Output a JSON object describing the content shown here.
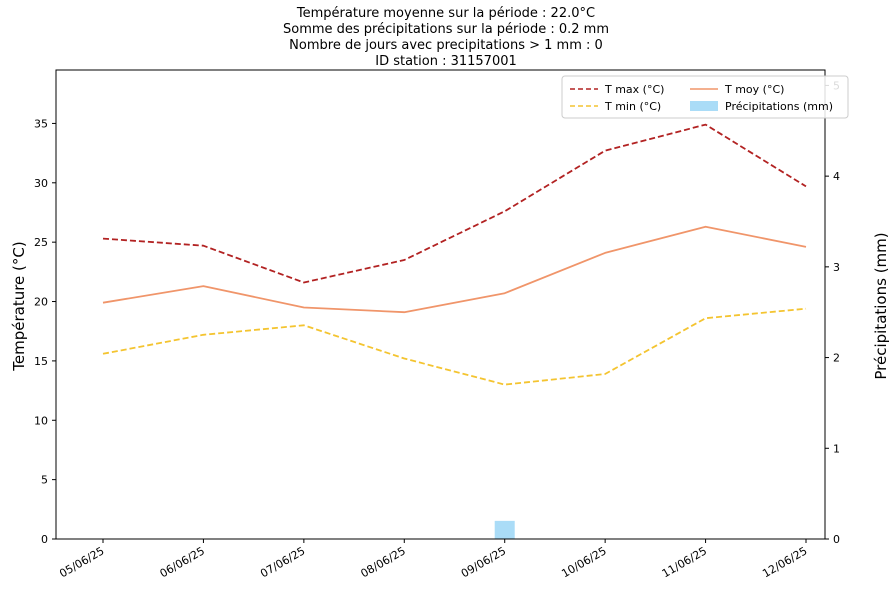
{
  "chart_data": {
    "type": "line",
    "title_lines": [
      "Température moyenne sur la période : 22.0°C",
      "Somme des précipitations sur la période : 0.2 mm",
      "Nombre de jours avec precipitations > 1 mm : 0",
      "ID station : 31157001"
    ],
    "categories": [
      "05/06/25",
      "06/06/25",
      "07/06/25",
      "08/06/25",
      "09/06/25",
      "10/06/25",
      "11/06/25",
      "12/06/25"
    ],
    "ylabel_left": "Température (°C)",
    "ylabel_right": "Précipitations (mm)",
    "ylim_left": [
      0,
      39.5
    ],
    "ylim_right": [
      0,
      5.17
    ],
    "yticks_left": [
      0,
      5,
      10,
      15,
      20,
      25,
      30,
      35
    ],
    "yticks_right": [
      0,
      1,
      2,
      3,
      4,
      5
    ],
    "grid": false,
    "legend_position": "top-right",
    "series": [
      {
        "name": "T max (°C)",
        "kind": "line",
        "style": "dashed",
        "color": "#b22222",
        "axis": "left",
        "values": [
          25.3,
          24.7,
          21.6,
          23.5,
          27.6,
          32.7,
          34.9,
          29.7
        ]
      },
      {
        "name": "T min (°C)",
        "kind": "line",
        "style": "dashed",
        "color": "#f4c430",
        "axis": "left",
        "values": [
          15.6,
          17.2,
          18.0,
          15.2,
          13.0,
          13.9,
          18.6,
          19.4
        ]
      },
      {
        "name": "T moy (°C)",
        "kind": "line",
        "style": "solid",
        "color": "#f0956a",
        "axis": "left",
        "values": [
          19.9,
          21.3,
          19.5,
          19.1,
          20.7,
          24.1,
          26.3,
          24.6
        ]
      },
      {
        "name": "Précipitations (mm)",
        "kind": "bar",
        "color": "#aadcf7",
        "axis": "right",
        "values": [
          0,
          0,
          0,
          0,
          0.2,
          0,
          0,
          0
        ]
      }
    ]
  }
}
